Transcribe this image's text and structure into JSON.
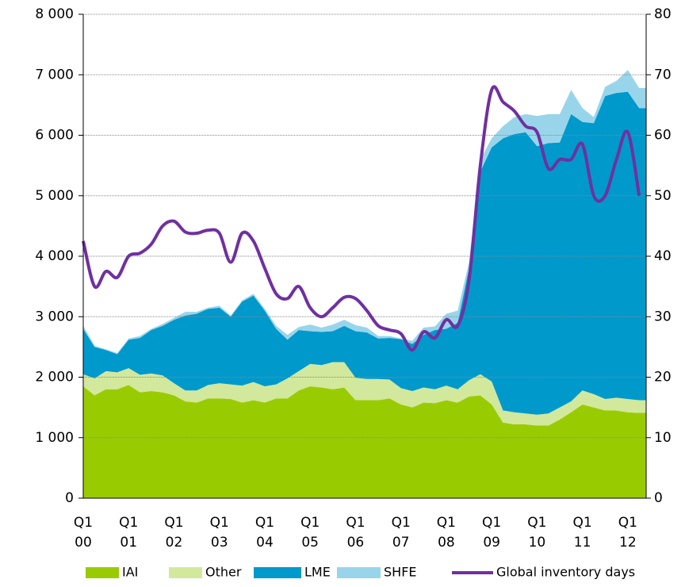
{
  "chart_data": {
    "type": "stacked_area_line",
    "categories": [
      "Q1\n00",
      null,
      null,
      null,
      "Q1\n01",
      null,
      null,
      null,
      "Q1\n02",
      null,
      null,
      null,
      "Q1\n03",
      null,
      null,
      null,
      "Q1\n04",
      null,
      null,
      null,
      "Q1\n05",
      null,
      null,
      null,
      "Q1\n06",
      null,
      null,
      null,
      "Q1\n07",
      null,
      null,
      null,
      "Q1\n08",
      null,
      null,
      null,
      "Q1\n09",
      null,
      null,
      null,
      "Q1\n10",
      null,
      null,
      null,
      "Q1\n11",
      null,
      null,
      null,
      "Q1\n12",
      null
    ],
    "series": [
      {
        "name": "IAI",
        "color": "#99cc00",
        "values": [
          1850,
          1700,
          1800,
          1800,
          1870,
          1750,
          1770,
          1750,
          1700,
          1600,
          1580,
          1650,
          1650,
          1640,
          1580,
          1620,
          1580,
          1650,
          1650,
          1780,
          1850,
          1830,
          1800,
          1830,
          1620,
          1620,
          1620,
          1650,
          1550,
          1500,
          1580,
          1570,
          1620,
          1580,
          1680,
          1700,
          1550,
          1250,
          1220,
          1220,
          1200,
          1200,
          1300,
          1420,
          1550,
          1500,
          1450,
          1450,
          1420,
          1410
        ]
      },
      {
        "name": "Other",
        "color": "#d2e89c",
        "values": [
          200,
          280,
          300,
          280,
          280,
          290,
          290,
          280,
          200,
          180,
          200,
          220,
          250,
          240,
          280,
          300,
          270,
          230,
          330,
          320,
          370,
          370,
          450,
          420,
          370,
          350,
          350,
          310,
          270,
          270,
          250,
          230,
          240,
          220,
          270,
          350,
          380,
          200,
          200,
          180,
          180,
          200,
          200,
          180,
          230,
          220,
          190,
          210,
          220,
          210
        ]
      },
      {
        "name": "LME",
        "color": "#0099cc",
        "values": [
          750,
          520,
          350,
          300,
          470,
          610,
          720,
          820,
          1050,
          1240,
          1270,
          1260,
          1250,
          1120,
          1390,
          1430,
          1250,
          920,
          640,
          680,
          540,
          550,
          510,
          600,
          770,
          770,
          670,
          690,
          810,
          780,
          870,
          980,
          940,
          1100,
          1850,
          3350,
          3870,
          4500,
          4600,
          4650,
          4440,
          4470,
          4380,
          4750,
          4440,
          4480,
          5010,
          5040,
          5080,
          4830
        ]
      },
      {
        "name": "SHFE",
        "color": "#99d5ea",
        "values": [
          50,
          20,
          10,
          20,
          20,
          30,
          20,
          30,
          30,
          60,
          30,
          20,
          30,
          20,
          20,
          30,
          30,
          50,
          80,
          50,
          110,
          70,
          110,
          100,
          100,
          80,
          40,
          30,
          10,
          50,
          120,
          60,
          250,
          200,
          100,
          200,
          150,
          200,
          280,
          300,
          500,
          480,
          470,
          400,
          230,
          100,
          150,
          200,
          360,
          330
        ]
      },
      {
        "name": "Global inventory days",
        "color": "#7030a0",
        "axis": "y2",
        "values": [
          42.5,
          35,
          37.5,
          36.5,
          40,
          40.5,
          42,
          45,
          45.8,
          44,
          43.8,
          44.3,
          43.8,
          39,
          43.8,
          42.5,
          38,
          33.8,
          33,
          35,
          31.5,
          30,
          31.5,
          33.2,
          33,
          31,
          28.5,
          27.8,
          27.2,
          24.5,
          27.5,
          26.5,
          29.5,
          28.5,
          36,
          55,
          67.5,
          65.5,
          64,
          61.5,
          60.5,
          54.5,
          56,
          56,
          58.5,
          50,
          50,
          56,
          60.5,
          50
        ]
      }
    ],
    "ylim": [
      0,
      8000
    ],
    "yticks": [
      0,
      {
        "value": 1000,
        "label": "1 000"
      },
      {
        "value": 2000,
        "label": "2 000"
      },
      {
        "value": 3000,
        "label": "3 000"
      },
      {
        "value": 4000,
        "label": "4 000"
      },
      {
        "value": 5000,
        "label": "5 000"
      },
      {
        "value": 6000,
        "label": "6 000"
      },
      {
        "value": 7000,
        "label": "7 000"
      },
      {
        "value": 8000,
        "label": "8 000"
      }
    ],
    "y2lim": [
      0,
      80
    ],
    "y2ticks": [
      0,
      10,
      20,
      30,
      40,
      50,
      60,
      70,
      80
    ],
    "grid": true,
    "legend": "bottom"
  }
}
